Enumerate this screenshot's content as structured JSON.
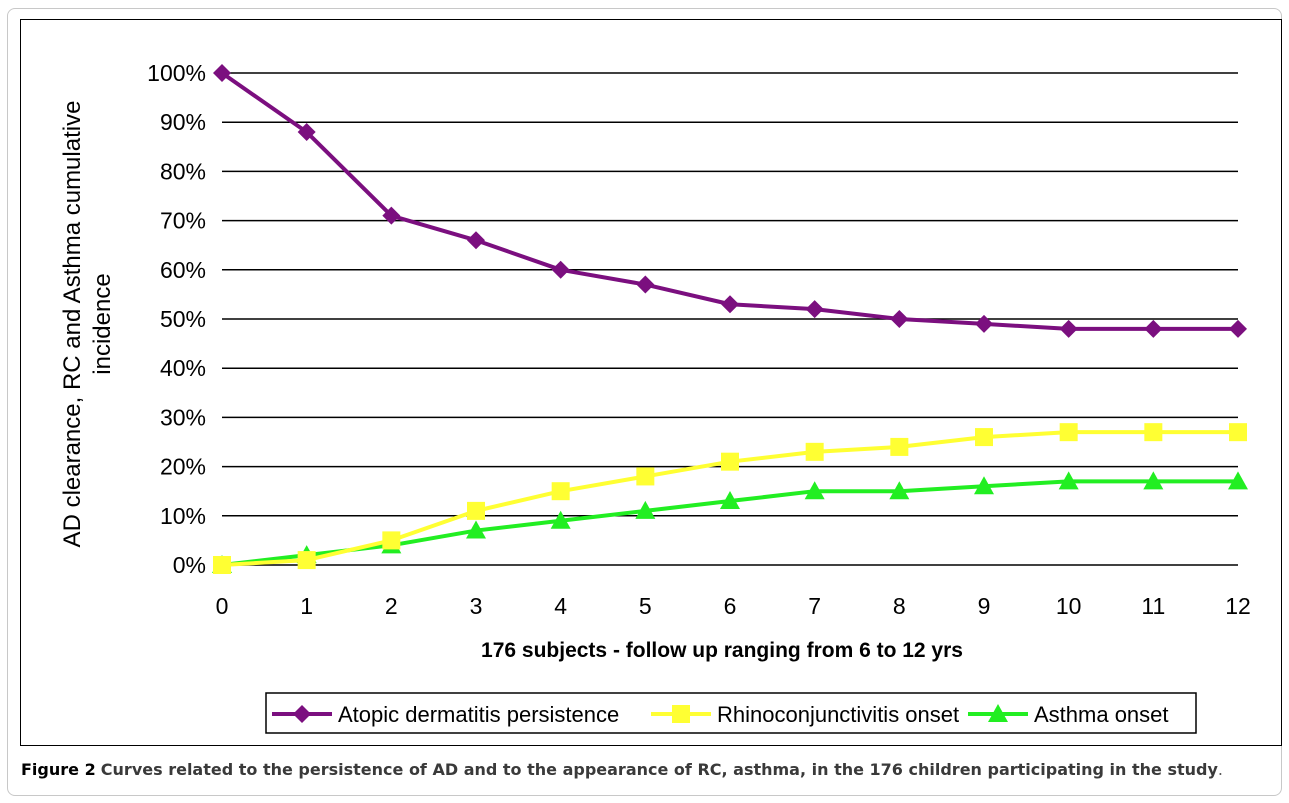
{
  "chart_data": {
    "type": "line",
    "x": [
      0,
      1,
      2,
      3,
      4,
      5,
      6,
      7,
      8,
      9,
      10,
      11,
      12
    ],
    "xlabel": "176 subjects - follow up ranging from 6 to 12  yrs",
    "ylabel": "AD clearance, RC and Asthma cumulative incidence",
    "ylim": [
      0,
      100
    ],
    "yticks": [
      "0%",
      "10%",
      "20%",
      "30%",
      "40%",
      "50%",
      "60%",
      "70%",
      "80%",
      "90%",
      "100%"
    ],
    "xticks": [
      "0",
      "1",
      "2",
      "3",
      "4",
      "5",
      "6",
      "7",
      "8",
      "9",
      "10",
      "11",
      "12"
    ],
    "grid": "horizontal",
    "legend_position": "bottom",
    "series": [
      {
        "name": "Atopic dermatitis persistence",
        "color": "#7b0f7f",
        "marker": "diamond",
        "values": [
          100,
          88,
          71,
          66,
          60,
          57,
          53,
          52,
          50,
          49,
          48,
          48,
          48
        ]
      },
      {
        "name": "Rhinoconjunctivitis onset",
        "color": "#ffff33",
        "marker": "square",
        "values": [
          0,
          1,
          5,
          11,
          15,
          18,
          21,
          23,
          24,
          26,
          27,
          27,
          27
        ]
      },
      {
        "name": "Asthma onset",
        "color": "#22ee22",
        "marker": "triangle",
        "values": [
          0,
          2,
          4,
          7,
          9,
          11,
          13,
          15,
          15,
          16,
          17,
          17,
          17
        ]
      }
    ]
  },
  "caption": {
    "label": "Figure 2",
    "text": "Curves related to the persistence of AD and to the appearance of RC, asthma, in the 176 children participating in the study",
    "end": "."
  }
}
